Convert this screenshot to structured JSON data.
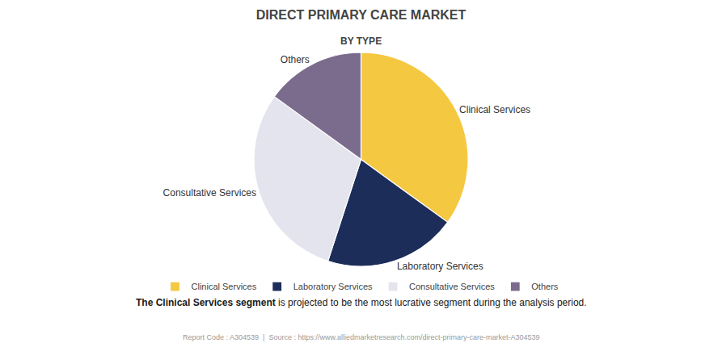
{
  "chart_data": {
    "type": "pie",
    "title": "DIRECT PRIMARY CARE MARKET",
    "subtitle": "BY TYPE",
    "categories": [
      "Clinical Services",
      "Laboratory Services",
      "Consultative Services",
      "Others"
    ],
    "values": [
      35,
      20,
      30,
      15
    ],
    "colors": [
      "#F5C842",
      "#1C2D5A",
      "#E4E4EE",
      "#7B6B8D"
    ],
    "legend": "bottom",
    "annotation": [
      "The Clinical Services segment",
      " is projected to be the most lucrative segment during the analysis period."
    ],
    "footer": "Report Code : A304539  |  Source : https://www.alliedmarketresearch.com/direct-primary-care-market-A304539"
  }
}
